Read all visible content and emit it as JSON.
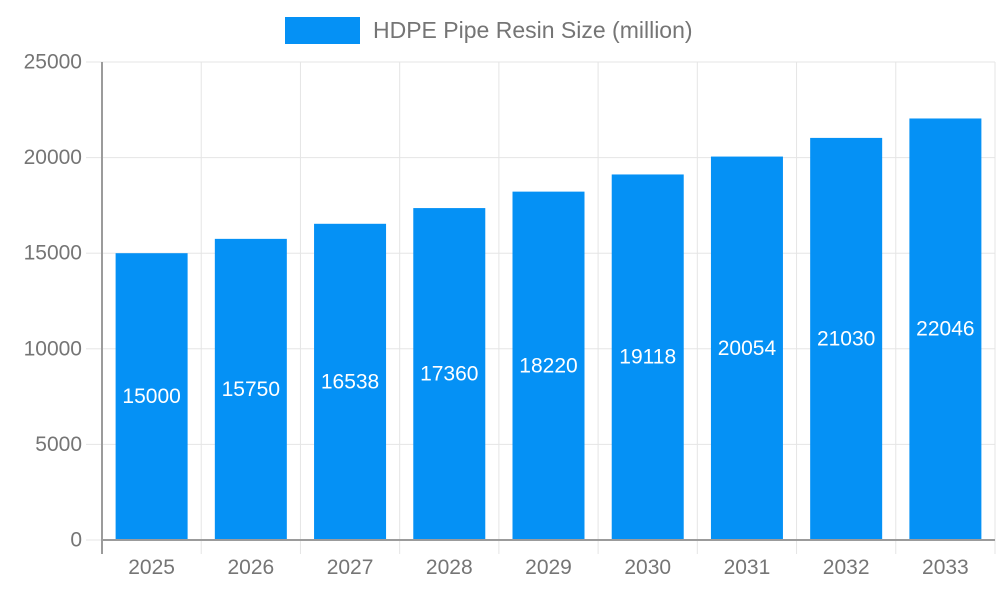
{
  "legend": {
    "label": "HDPE Pipe Resin Size (million)"
  },
  "chart_data": {
    "type": "bar",
    "title": "",
    "xlabel": "",
    "ylabel": "",
    "categories": [
      "2025",
      "2026",
      "2027",
      "2028",
      "2029",
      "2030",
      "2031",
      "2032",
      "2033"
    ],
    "series": [
      {
        "name": "HDPE Pipe Resin Size (million)",
        "values": [
          15000,
          15750,
          16538,
          17360,
          18220,
          19118,
          20054,
          21030,
          22046
        ]
      }
    ],
    "bar_value_labels": [
      15000,
      15750,
      16538,
      17360,
      18220,
      19118,
      20054,
      21030,
      22046
    ],
    "ylim": [
      0,
      25000
    ],
    "yticks": [
      0,
      5000,
      10000,
      15000,
      20000,
      25000
    ],
    "grid": true,
    "legend_position": "top-center"
  },
  "colors": {
    "bar": "#0591F5",
    "axis": "#9b9b9b",
    "grid": "#e5e5e5",
    "tick_text": "#757575",
    "bar_label": "#ffffff"
  }
}
